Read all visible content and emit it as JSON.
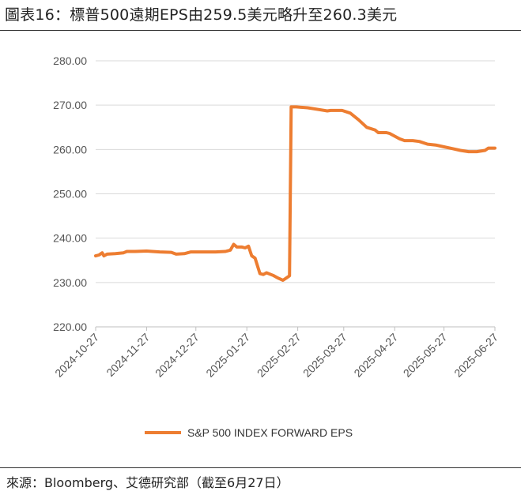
{
  "header": {
    "title": "圖表16：標普500遠期EPS由259.5美元略升至260.3美元"
  },
  "footer": {
    "source": "來源：Bloomberg、艾德研究部（截至6月27日）"
  },
  "chart_data": {
    "type": "line",
    "title": "圖表16：標普500遠期EPS由259.5美元略升至260.3美元",
    "xlabel": "",
    "ylabel": "",
    "ylim": [
      220,
      280
    ],
    "yticks": [
      "220.00",
      "230.00",
      "240.00",
      "250.00",
      "260.00",
      "270.00",
      "280.00"
    ],
    "xticks": [
      "2024-10-27",
      "2024-11-27",
      "2024-12-27",
      "2025-01-27",
      "2025-02-27",
      "2025-03-27",
      "2025-04-27",
      "2025-05-27",
      "2025-06-27"
    ],
    "xlim": [
      "2024-10-27",
      "2025-06-27"
    ],
    "grid": "horizontal",
    "legend_position": "bottom",
    "color": "#ED7D31",
    "series": [
      {
        "name": "S&P 500 INDEX FORWARD EPS",
        "points": [
          [
            "2024-10-27",
            236.0
          ],
          [
            "2024-10-29",
            236.2
          ],
          [
            "2024-10-31",
            236.7
          ],
          [
            "2024-11-01",
            236.0
          ],
          [
            "2024-11-03",
            236.4
          ],
          [
            "2024-11-08",
            236.5
          ],
          [
            "2024-11-13",
            236.7
          ],
          [
            "2024-11-15",
            237.0
          ],
          [
            "2024-11-20",
            237.0
          ],
          [
            "2024-11-27",
            237.1
          ],
          [
            "2024-12-05",
            236.9
          ],
          [
            "2024-12-12",
            236.8
          ],
          [
            "2024-12-15",
            236.4
          ],
          [
            "2024-12-20",
            236.5
          ],
          [
            "2024-12-24",
            236.9
          ],
          [
            "2025-01-01",
            236.9
          ],
          [
            "2025-01-08",
            236.9
          ],
          [
            "2025-01-14",
            237.0
          ],
          [
            "2025-01-17",
            237.3
          ],
          [
            "2025-01-19",
            238.6
          ],
          [
            "2025-01-21",
            238.0
          ],
          [
            "2025-01-24",
            238.0
          ],
          [
            "2025-01-26",
            237.8
          ],
          [
            "2025-01-28",
            238.2
          ],
          [
            "2025-01-30",
            236.0
          ],
          [
            "2025-02-01",
            235.5
          ],
          [
            "2025-02-04",
            232.0
          ],
          [
            "2025-02-06",
            231.8
          ],
          [
            "2025-02-08",
            232.2
          ],
          [
            "2025-02-12",
            231.6
          ],
          [
            "2025-02-15",
            231.0
          ],
          [
            "2025-02-18",
            230.5
          ],
          [
            "2025-02-20",
            231.0
          ],
          [
            "2025-02-22",
            231.5
          ],
          [
            "2025-02-23",
            269.6
          ],
          [
            "2025-02-26",
            269.6
          ],
          [
            "2025-03-05",
            269.4
          ],
          [
            "2025-03-12",
            269.0
          ],
          [
            "2025-03-17",
            268.7
          ],
          [
            "2025-03-19",
            268.8
          ],
          [
            "2025-03-26",
            268.8
          ],
          [
            "2025-03-31",
            268.2
          ],
          [
            "2025-04-05",
            266.7
          ],
          [
            "2025-04-10",
            265.0
          ],
          [
            "2025-04-15",
            264.4
          ],
          [
            "2025-04-17",
            263.8
          ],
          [
            "2025-04-22",
            263.8
          ],
          [
            "2025-04-24",
            263.6
          ],
          [
            "2025-04-30",
            262.4
          ],
          [
            "2025-05-03",
            262.0
          ],
          [
            "2025-05-08",
            262.0
          ],
          [
            "2025-05-12",
            261.8
          ],
          [
            "2025-05-17",
            261.2
          ],
          [
            "2025-05-22",
            261.0
          ],
          [
            "2025-05-27",
            260.6
          ],
          [
            "2025-06-01",
            260.2
          ],
          [
            "2025-06-06",
            259.8
          ],
          [
            "2025-06-11",
            259.5
          ],
          [
            "2025-06-16",
            259.5
          ],
          [
            "2025-06-21",
            259.8
          ],
          [
            "2025-06-23",
            260.3
          ],
          [
            "2025-06-27",
            260.3
          ]
        ]
      }
    ]
  }
}
